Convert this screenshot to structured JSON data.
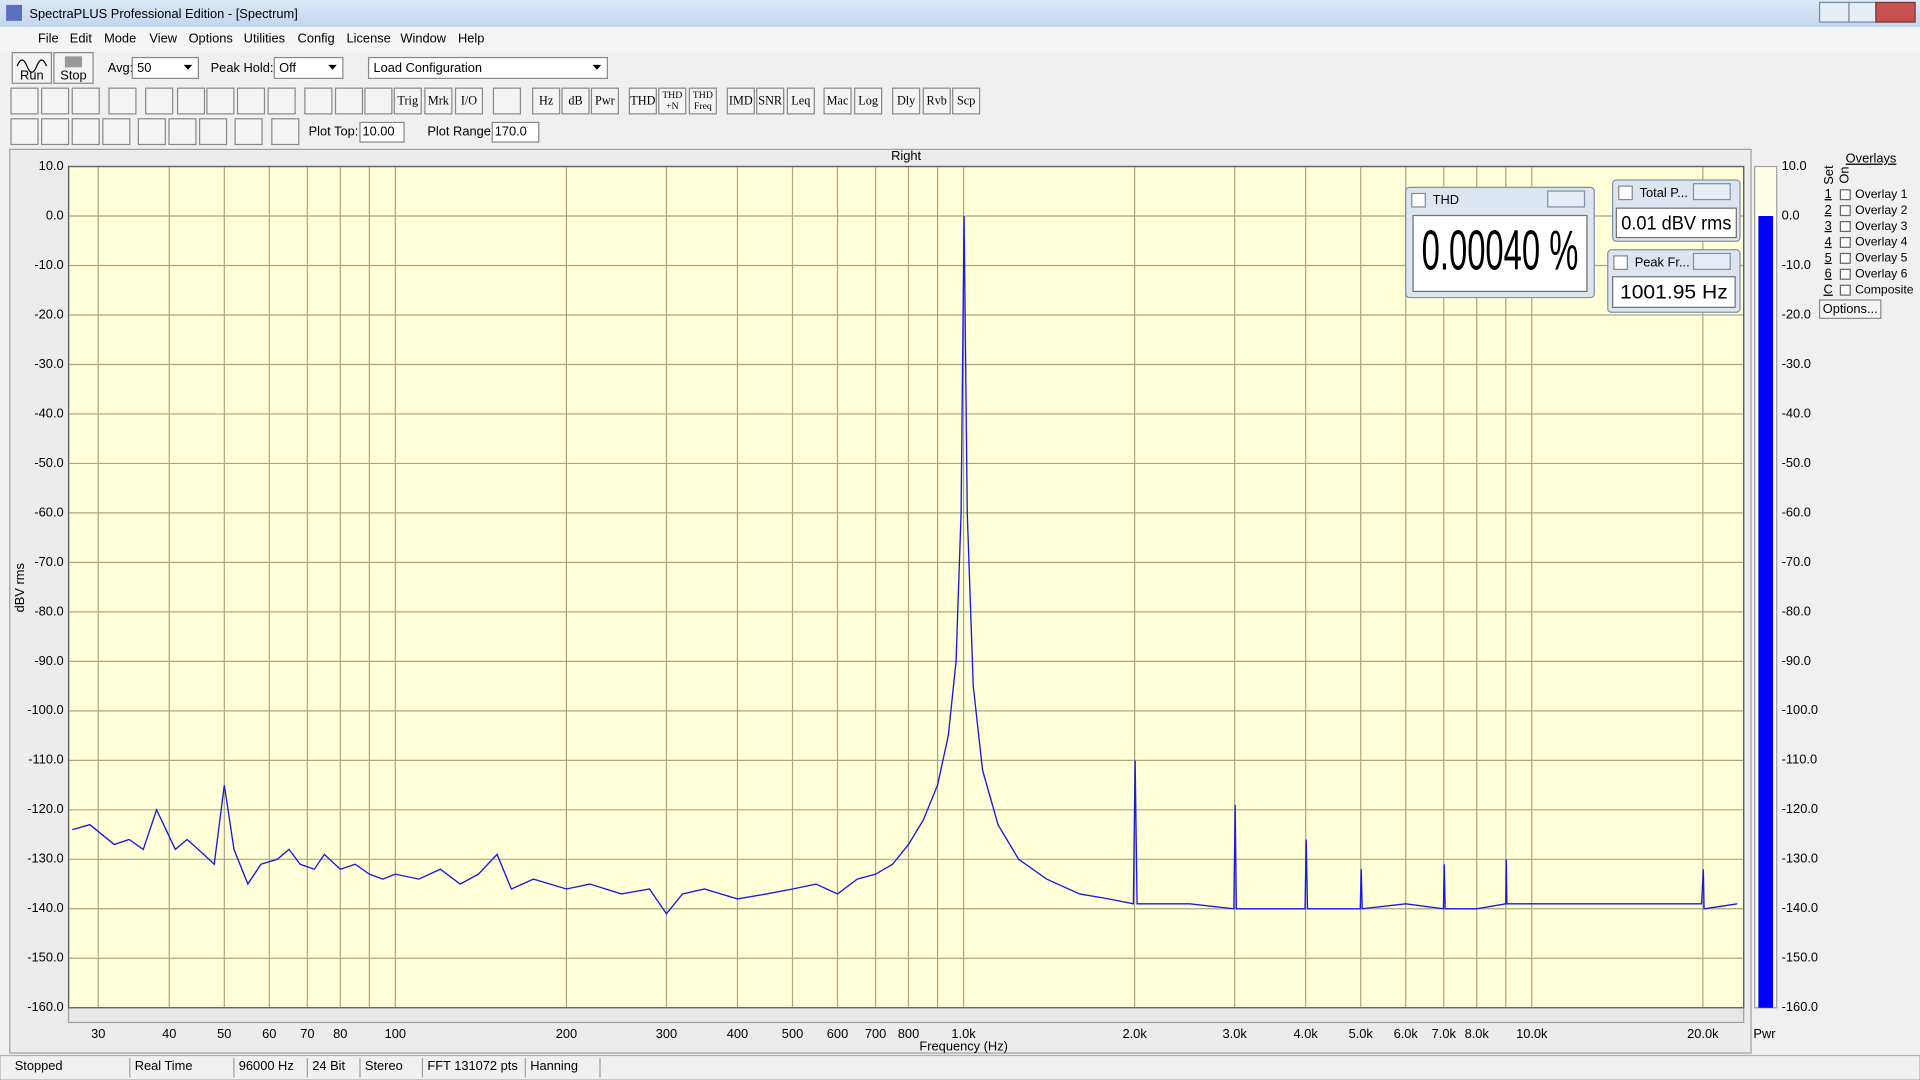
{
  "window": {
    "title": "SpectraPLUS Professional Edition - [Spectrum]",
    "menu": [
      "File",
      "Edit",
      "Mode",
      "View",
      "Options",
      "Utilities",
      "Config",
      "License",
      "Window",
      "Help"
    ]
  },
  "toolbar": {
    "run": "Run",
    "stop": "Stop",
    "avg_label": "Avg:",
    "avg_value": "50",
    "peak_hold_label": "Peak Hold:",
    "peak_hold_value": "Off",
    "configuration": "Load Configuration",
    "buttons": [
      [
        "Trig"
      ],
      [
        "Mrk"
      ],
      [
        "I/O"
      ],
      [
        "Hz"
      ],
      [
        "dB"
      ],
      [
        "Pwr"
      ],
      [
        "THD"
      ],
      [
        "THD",
        "+N"
      ],
      [
        "THD",
        "Freq"
      ],
      [
        "IMD"
      ],
      [
        "SNR"
      ],
      [
        "Leq"
      ],
      [
        "Mac"
      ],
      [
        "Log"
      ],
      [
        "Dly"
      ],
      [
        "Rvb"
      ],
      [
        "Scp"
      ]
    ],
    "plot_top_label": "Plot Top:",
    "plot_top": "10.00",
    "plot_range_label": "Plot Range:",
    "plot_range": "170.0"
  },
  "chart_data": {
    "type": "line",
    "title": "Right",
    "x_label": "Frequency (Hz)",
    "y_label": "dBV rms",
    "xscale": "log",
    "grid": true,
    "color": "#1a1ae6",
    "xlim": [
      26.6,
      23600
    ],
    "ylim": [
      -160,
      10
    ],
    "xticks": [
      30,
      40,
      50,
      60,
      70,
      80,
      100,
      200,
      300,
      400,
      500,
      600,
      700,
      800,
      {
        "value": 1000,
        "label": "1.0k"
      },
      {
        "value": 2000,
        "label": "2.0k"
      },
      {
        "value": 3000,
        "label": "3.0k"
      },
      {
        "value": 4000,
        "label": "4.0k"
      },
      {
        "value": 5000,
        "label": "5.0k"
      },
      {
        "value": 6000,
        "label": "6.0k"
      },
      {
        "value": 7000,
        "label": "7.0k"
      },
      {
        "value": 8000,
        "label": "8.0k"
      },
      {
        "value": 10000,
        "label": "10.0k"
      },
      {
        "value": 20000,
        "label": "20.0k"
      }
    ],
    "xminor": [
      90,
      900,
      9000
    ],
    "yticks": [
      {
        "value": 10,
        "label": "10.0"
      },
      {
        "value": 0,
        "label": "0.0"
      },
      {
        "value": -10,
        "label": "-10.0"
      },
      {
        "value": -20,
        "label": "-20.0"
      },
      {
        "value": -30,
        "label": "-30.0"
      },
      {
        "value": -40,
        "label": "-40.0"
      },
      {
        "value": -50,
        "label": "-50.0"
      },
      {
        "value": -60,
        "label": "-60.0"
      },
      {
        "value": -70,
        "label": "-70.0"
      },
      {
        "value": -80,
        "label": "-80.0"
      },
      {
        "value": -90,
        "label": "-90.0"
      },
      {
        "value": -100,
        "label": "-100.0"
      },
      {
        "value": -110,
        "label": "-110.0"
      },
      {
        "value": -120,
        "label": "-120.0"
      },
      {
        "value": -130,
        "label": "-130.0"
      },
      {
        "value": -140,
        "label": "-140.0"
      },
      {
        "value": -150,
        "label": "-150.0"
      },
      {
        "value": -160,
        "label": "-160.0"
      }
    ],
    "x": [
      27,
      29,
      32,
      34,
      36,
      38,
      41,
      43,
      46,
      48,
      50,
      52,
      55,
      58,
      62,
      65,
      68,
      72,
      75,
      80,
      85,
      90,
      95,
      100,
      110,
      120,
      130,
      140,
      151,
      160,
      175,
      200,
      220,
      250,
      280,
      300,
      320,
      350,
      400,
      450,
      500,
      550,
      600,
      650,
      700,
      750,
      800,
      850,
      900,
      940,
      970,
      990,
      1002,
      1015,
      1040,
      1080,
      1150,
      1250,
      1400,
      1600,
      1800,
      1990,
      2004,
      2020,
      2500,
      2990,
      3006,
      3020,
      3500,
      3990,
      4008,
      4030,
      4500,
      4990,
      5010,
      5030,
      6000,
      6990,
      7014,
      7040,
      8000,
      9000,
      9018,
      9040,
      12000,
      15000,
      19900,
      20040,
      20100,
      23000
    ],
    "values": [
      -124,
      -123,
      -127,
      -126,
      -128,
      -120,
      -128,
      -126,
      -129,
      -131,
      -115,
      -128,
      -135,
      -131,
      -130,
      -128,
      -131,
      -132,
      -129,
      -132,
      -131,
      -133,
      -134,
      -133,
      -134,
      -132,
      -135,
      -133,
      -129,
      -136,
      -134,
      -136,
      -135,
      -137,
      -136,
      -141,
      -137,
      -136,
      -138,
      -137,
      -136,
      -135,
      -137,
      -134,
      -133,
      -131,
      -127,
      -122,
      -115,
      -105,
      -90,
      -60,
      0,
      -60,
      -95,
      -112,
      -123,
      -130,
      -134,
      -137,
      -138,
      -139,
      -110,
      -139,
      -139,
      -140,
      -119,
      -140,
      -140,
      -140,
      -126,
      -140,
      -140,
      -140,
      -132,
      -140,
      -139,
      -140,
      -131,
      -140,
      -140,
      -139,
      -130,
      -139,
      -139,
      -139,
      -139,
      -132,
      -140,
      -139
    ]
  },
  "meter": {
    "label": "Pwr",
    "value": 0,
    "color": "#0000ff"
  },
  "readouts": [
    {
      "title": "THD",
      "value": "0.00040 %"
    },
    {
      "title": "Total P...",
      "value": "0.01 dBV rms"
    },
    {
      "title": "Peak Fr...",
      "value": "1001.95 Hz"
    }
  ],
  "overlays": {
    "title": "Overlays",
    "set_label": "Set",
    "on_label": "On",
    "rows": [
      {
        "key": "1",
        "label": "Overlay 1",
        "color": "#00a000"
      },
      {
        "key": "2",
        "label": "Overlay 2",
        "color": "#00a0b0"
      },
      {
        "key": "3",
        "label": "Overlay 3",
        "color": "#b000b0"
      },
      {
        "key": "4",
        "label": "Overlay 4",
        "color": "#ff00ff"
      },
      {
        "key": "5",
        "label": "Overlay 5",
        "color": "#b06020"
      },
      {
        "key": "6",
        "label": "Overlay 6",
        "color": "#ff8040"
      },
      {
        "key": "C",
        "label": "Composite",
        "color": "#000000"
      }
    ],
    "options": "Options..."
  },
  "status_bar": [
    "Stopped",
    "Real Time",
    "96000 Hz",
    "24 Bit",
    "Stereo",
    "FFT 131072 pts",
    "Hanning"
  ]
}
